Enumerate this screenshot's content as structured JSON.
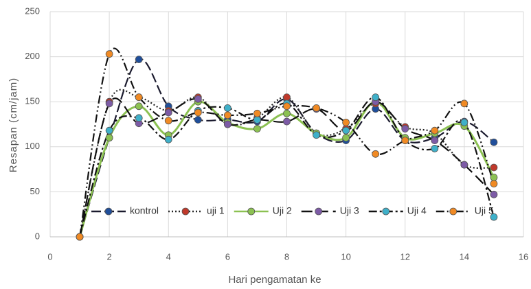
{
  "chart_data": {
    "type": "line",
    "x_label": "Hari pengamatan ke",
    "y_label": "Resapan (cm/jam)",
    "x": [
      1,
      2,
      3,
      4,
      5,
      6,
      7,
      8,
      9,
      10,
      11,
      12,
      13,
      14,
      15
    ],
    "series": [
      {
        "name": "kontrol",
        "color": "#1f4e9a",
        "line_color": "#1a1a2e",
        "dash": "14 5",
        "values": [
          0,
          110,
          197,
          145,
          130,
          130,
          128,
          153,
          115,
          107,
          142,
          107,
          110,
          128,
          105
        ]
      },
      {
        "name": "uji 1",
        "color": "#c0392b",
        "line_color": "#222222",
        "dash": "2 3",
        "values": [
          0,
          150,
          155,
          140,
          155,
          125,
          132,
          155,
          115,
          120,
          148,
          122,
          115,
          80,
          77
        ]
      },
      {
        "name": "Uji 2",
        "color": "#8cc152",
        "line_color": "#8cc152",
        "dash": "none",
        "values": [
          0,
          110,
          145,
          113,
          150,
          127,
          120,
          137,
          115,
          110,
          150,
          110,
          115,
          123,
          66
        ]
      },
      {
        "name": "Uji 3",
        "color": "#7d5ba6",
        "line_color": "#111111",
        "dash": "16 7",
        "values": [
          0,
          148,
          126,
          138,
          153,
          125,
          130,
          128,
          142,
          118,
          150,
          120,
          107,
          80,
          47
        ]
      },
      {
        "name": "Uji 4",
        "color": "#3fb0c9",
        "line_color": "#111111",
        "dash": "12 4 3 4",
        "values": [
          0,
          118,
          132,
          108,
          140,
          143,
          130,
          148,
          113,
          118,
          155,
          107,
          98,
          127,
          22
        ]
      },
      {
        "name": "Uji 5",
        "color": "#f08a24",
        "line_color": "#111111",
        "dash": "12 4 2 4 2 4",
        "values": [
          0,
          203,
          155,
          129,
          138,
          135,
          137,
          145,
          143,
          127,
          92,
          107,
          118,
          148,
          59
        ]
      }
    ],
    "xlim": [
      0,
      16
    ],
    "xticks": [
      0,
      2,
      4,
      6,
      8,
      10,
      12,
      14,
      16
    ],
    "ylim": [
      0,
      250
    ],
    "yticks": [
      0,
      50,
      100,
      150,
      200,
      250
    ],
    "grid": true,
    "legend": "bottom"
  }
}
